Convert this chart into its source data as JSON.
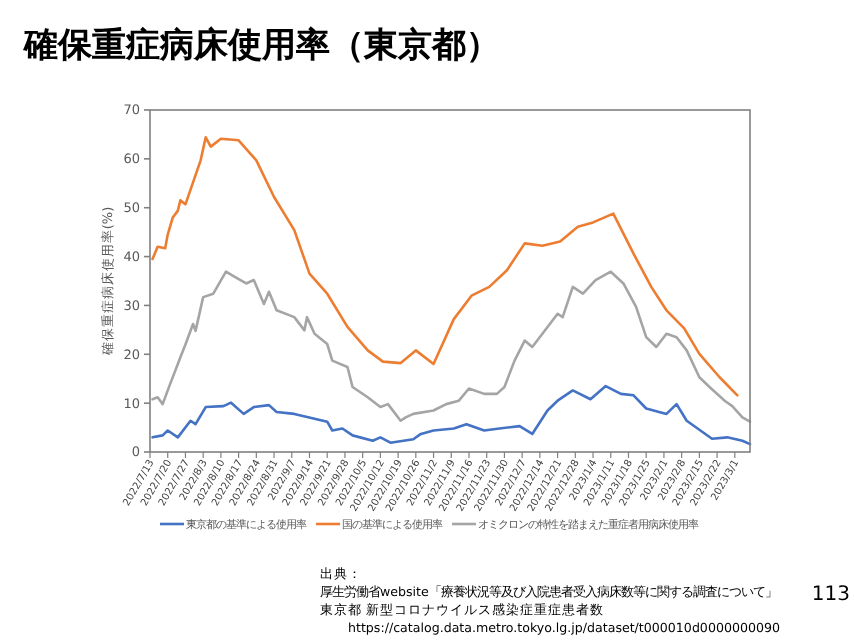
{
  "chart_data": {
    "type": "line",
    "title": "確保重症病床使用率（東京都）",
    "ylabel": "確保重症病床使用率(%)",
    "ylim": [
      0,
      70
    ],
    "yticks": [
      0,
      10,
      20,
      30,
      40,
      50,
      60,
      70
    ],
    "xlim": [
      "2022-07-13",
      "2023-03-07"
    ],
    "xticks": [
      {
        "value": "2022-07-13",
        "label": "2022/7/13"
      },
      {
        "value": "2022-07-20",
        "label": "2022/7/20"
      },
      {
        "value": "2022-07-27",
        "label": "2022/7/27"
      },
      {
        "value": "2022-08-03",
        "label": "2022/8/3"
      },
      {
        "value": "2022-08-10",
        "label": "2022/8/10"
      },
      {
        "value": "2022-08-17",
        "label": "2022/8/17"
      },
      {
        "value": "2022-08-24",
        "label": "2022/8/24"
      },
      {
        "value": "2022-08-31",
        "label": "2022/8/31"
      },
      {
        "value": "2022-09-07",
        "label": "2022/9/7"
      },
      {
        "value": "2022-09-14",
        "label": "2022/9/14"
      },
      {
        "value": "2022-09-21",
        "label": "2022/9/21"
      },
      {
        "value": "2022-09-28",
        "label": "2022/9/28"
      },
      {
        "value": "2022-10-05",
        "label": "2022/10/5"
      },
      {
        "value": "2022-10-12",
        "label": "2022/10/12"
      },
      {
        "value": "2022-10-19",
        "label": "2022/10/19"
      },
      {
        "value": "2022-10-26",
        "label": "2022/10/26"
      },
      {
        "value": "2022-11-02",
        "label": "2022/11/2"
      },
      {
        "value": "2022-11-09",
        "label": "2022/11/9"
      },
      {
        "value": "2022-11-16",
        "label": "2022/11/16"
      },
      {
        "value": "2022-11-23",
        "label": "2022/11/23"
      },
      {
        "value": "2022-11-30",
        "label": "2022/11/30"
      },
      {
        "value": "2022-12-07",
        "label": "2022/12/7"
      },
      {
        "value": "2022-12-14",
        "label": "2022/12/14"
      },
      {
        "value": "2022-12-21",
        "label": "2022/12/21"
      },
      {
        "value": "2022-12-28",
        "label": "2022/12/28"
      },
      {
        "value": "2023-01-04",
        "label": "2023/1/4"
      },
      {
        "value": "2023-01-11",
        "label": "2023/1/11"
      },
      {
        "value": "2023-01-18",
        "label": "2023/1/18"
      },
      {
        "value": "2023-01-25",
        "label": "2023/1/25"
      },
      {
        "value": "2023-02-01",
        "label": "2023/2/1"
      },
      {
        "value": "2023-02-08",
        "label": "2023/2/8"
      },
      {
        "value": "2023-02-15",
        "label": "2023/2/15"
      },
      {
        "value": "2023-02-22",
        "label": "2023/2/22"
      },
      {
        "value": "2023-03-01",
        "label": "2023/3/1"
      }
    ],
    "legend": "bottom",
    "marker": "none",
    "series": [
      {
        "name": "東京都の基準による使用率",
        "color": "#4472c4",
        "x": [
          "2022-07-14",
          "2022-07-18",
          "2022-07-20",
          "2022-07-24",
          "2022-07-29",
          "2022-07-31",
          "2022-08-04",
          "2022-08-11",
          "2022-08-14",
          "2022-08-19",
          "2022-08-23",
          "2022-08-29",
          "2022-09-01",
          "2022-09-08",
          "2022-09-16",
          "2022-09-21",
          "2022-09-23",
          "2022-09-27",
          "2022-10-01",
          "2022-10-09",
          "2022-10-12",
          "2022-10-16",
          "2022-10-25",
          "2022-10-28",
          "2022-11-02",
          "2022-11-10",
          "2022-11-15",
          "2022-11-22",
          "2022-11-28",
          "2022-12-06",
          "2022-12-11",
          "2022-12-17",
          "2022-12-21",
          "2022-12-27",
          "2023-01-03",
          "2023-01-09",
          "2023-01-15",
          "2023-01-20",
          "2023-01-25",
          "2023-02-02",
          "2023-02-06",
          "2023-02-10",
          "2023-02-20",
          "2023-02-26",
          "2023-03-04",
          "2023-03-07"
        ],
        "values": [
          3.0,
          3.4,
          4.4,
          3.0,
          6.4,
          5.7,
          9.2,
          9.4,
          10.1,
          7.8,
          9.2,
          9.6,
          8.2,
          7.8,
          6.8,
          6.2,
          4.4,
          4.8,
          3.4,
          2.3,
          3.0,
          1.9,
          2.6,
          3.7,
          4.4,
          4.8,
          5.7,
          4.4,
          4.8,
          5.3,
          3.7,
          8.5,
          10.5,
          12.6,
          10.8,
          13.5,
          11.9,
          11.6,
          8.9,
          7.8,
          9.8,
          6.4,
          2.7,
          3.0,
          2.3,
          1.6
        ]
      },
      {
        "name": "国の基準による使用率",
        "color": "#ed7d31",
        "x": [
          "2022-07-14",
          "2022-07-16",
          "2022-07-19",
          "2022-07-20",
          "2022-07-22",
          "2022-07-24",
          "2022-07-25",
          "2022-07-27",
          "2022-08-02",
          "2022-08-04",
          "2022-08-06",
          "2022-08-10",
          "2022-08-17",
          "2022-08-24",
          "2022-08-31",
          "2022-09-08",
          "2022-09-14",
          "2022-09-21",
          "2022-09-29",
          "2022-10-07",
          "2022-10-13",
          "2022-10-20",
          "2022-10-26",
          "2022-11-02",
          "2022-11-10",
          "2022-11-17",
          "2022-11-24",
          "2022-12-01",
          "2022-12-08",
          "2022-12-15",
          "2022-12-22",
          "2022-12-29",
          "2023-01-04",
          "2023-01-12",
          "2023-01-20",
          "2023-01-27",
          "2023-02-02",
          "2023-02-09",
          "2023-02-15",
          "2023-02-23",
          "2023-03-02"
        ],
        "values": [
          39.5,
          42,
          41.7,
          44.5,
          48,
          49.4,
          51.5,
          50.7,
          59.7,
          64.4,
          62.5,
          64.1,
          63.8,
          59.7,
          52.2,
          45.4,
          36.5,
          32.4,
          25.6,
          20.8,
          18.5,
          18.2,
          20.8,
          18.0,
          27.2,
          32,
          33.8,
          37.2,
          42.7,
          42.2,
          43.1,
          46.1,
          47.0,
          48.8,
          40.6,
          33.8,
          29.0,
          25.3,
          20.1,
          15.3,
          11.6
        ]
      },
      {
        "name": "オミクロンの特性を踏まえた重症者用病床使用率",
        "color": "#a5a5a5",
        "x": [
          "2022-07-14",
          "2022-07-16",
          "2022-07-18",
          "2022-07-21",
          "2022-07-24",
          "2022-07-25",
          "2022-07-27",
          "2022-07-30",
          "2022-07-31",
          "2022-08-03",
          "2022-08-07",
          "2022-08-12",
          "2022-08-16",
          "2022-08-20",
          "2022-08-23",
          "2022-08-27",
          "2022-08-29",
          "2022-09-01",
          "2022-09-08",
          "2022-09-12",
          "2022-09-13",
          "2022-09-16",
          "2022-09-21",
          "2022-09-23",
          "2022-09-29",
          "2022-10-01",
          "2022-10-07",
          "2022-10-12",
          "2022-10-15",
          "2022-10-20",
          "2022-10-22",
          "2022-10-25",
          "2022-11-02",
          "2022-11-07",
          "2022-11-12",
          "2022-11-16",
          "2022-11-22",
          "2022-11-27",
          "2022-11-30",
          "2022-12-04",
          "2022-12-08",
          "2022-12-11",
          "2022-12-15",
          "2022-12-21",
          "2022-12-23",
          "2022-12-27",
          "2022-12-31",
          "2023-01-05",
          "2023-01-11",
          "2023-01-16",
          "2023-01-21",
          "2023-01-25",
          "2023-01-29",
          "2023-02-02",
          "2023-02-06",
          "2023-02-10",
          "2023-02-15",
          "2023-02-19",
          "2023-02-25",
          "2023-02-28",
          "2023-03-04",
          "2023-03-07"
        ],
        "values": [
          10.8,
          11.2,
          9.8,
          14,
          18,
          19.4,
          22,
          26.2,
          24.8,
          31.7,
          32.4,
          36.9,
          35.7,
          34.5,
          35.2,
          30.3,
          32.8,
          29,
          27.6,
          24.9,
          27.6,
          24.2,
          22.1,
          18.7,
          17.4,
          13.3,
          11.2,
          9.2,
          9.8,
          6.4,
          7.1,
          7.8,
          8.5,
          9.8,
          10.5,
          13,
          11.9,
          11.9,
          13.3,
          18.7,
          22.8,
          21.5,
          24.2,
          28.3,
          27.6,
          33.8,
          32.4,
          35.2,
          36.9,
          34.5,
          29.7,
          23.5,
          21.5,
          24.2,
          23.5,
          20.8,
          15.3,
          13.3,
          10.5,
          9.4,
          7.1,
          6.2
        ]
      }
    ],
    "annotations": [
      "出典：",
      "厚生労働省website「療養状況等及び入院患者受入病床数等に関する調査について」",
      "東京都 新型コロナウイルス感染症重症患者数",
      "https://catalog.data.metro.tokyo.lg.jp/dataset/t000010d0000000090",
      "113"
    ]
  }
}
